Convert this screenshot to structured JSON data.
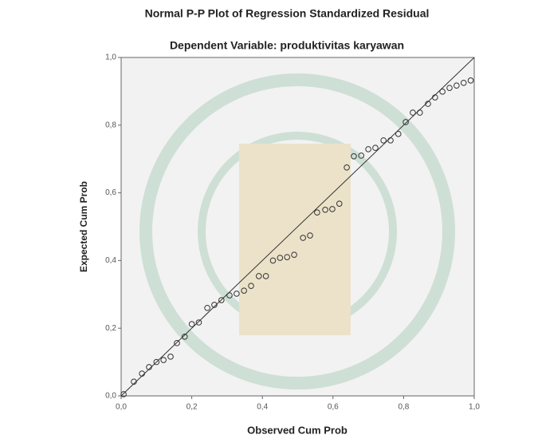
{
  "chart_data": {
    "type": "scatter",
    "title": "Normal P-P Plot of Regression Standardized Residual",
    "subtitle": "Dependent Variable: produktivitas karyawan",
    "x_label": "Observed Cum Prob",
    "y_label": "Expected Cum Prob",
    "x": [
      0.007,
      0.036,
      0.059,
      0.079,
      0.1,
      0.12,
      0.14,
      0.158,
      0.18,
      0.2,
      0.22,
      0.244,
      0.264,
      0.284,
      0.307,
      0.327,
      0.348,
      0.368,
      0.39,
      0.41,
      0.43,
      0.45,
      0.47,
      0.49,
      0.515,
      0.535,
      0.555,
      0.578,
      0.598,
      0.618,
      0.639,
      0.659,
      0.68,
      0.7,
      0.72,
      0.743,
      0.763,
      0.785,
      0.806,
      0.826,
      0.846,
      0.869,
      0.889,
      0.91,
      0.93,
      0.95,
      0.97,
      0.99
    ],
    "values": [
      0.005,
      0.042,
      0.066,
      0.085,
      0.1,
      0.106,
      0.116,
      0.156,
      0.175,
      0.212,
      0.217,
      0.26,
      0.269,
      0.283,
      0.297,
      0.302,
      0.311,
      0.325,
      0.354,
      0.354,
      0.4,
      0.408,
      0.41,
      0.417,
      0.467,
      0.474,
      0.542,
      0.55,
      0.552,
      0.568,
      0.675,
      0.708,
      0.71,
      0.729,
      0.733,
      0.755,
      0.755,
      0.774,
      0.809,
      0.837,
      0.837,
      0.863,
      0.882,
      0.899,
      0.91,
      0.917,
      0.925,
      0.932
    ],
    "color": "#333333",
    "xlim": [
      0,
      1
    ],
    "ylim": [
      0,
      1
    ],
    "xticks": [
      {
        "value": 0,
        "label": "0,0"
      },
      {
        "value": 0.2,
        "label": "0,2"
      },
      {
        "value": 0.4,
        "label": "0,4"
      },
      {
        "value": 0.6,
        "label": "0,6"
      },
      {
        "value": 0.8,
        "label": "0,8"
      },
      {
        "value": 1,
        "label": "1,0"
      }
    ],
    "yticks": [
      {
        "value": 0,
        "label": "0,0"
      },
      {
        "value": 0.2,
        "label": "0,2"
      },
      {
        "value": 0.4,
        "label": "0,4"
      },
      {
        "value": 0.6,
        "label": "0,6"
      },
      {
        "value": 0.8,
        "label": "0,8"
      },
      {
        "value": 1,
        "label": "1,0"
      }
    ],
    "reference_line": true
  }
}
